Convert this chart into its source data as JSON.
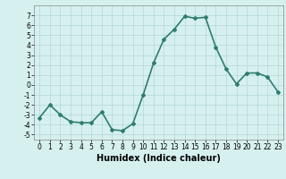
{
  "x": [
    0,
    1,
    2,
    3,
    4,
    5,
    6,
    7,
    8,
    9,
    10,
    11,
    12,
    13,
    14,
    15,
    16,
    17,
    18,
    19,
    20,
    21,
    22,
    23
  ],
  "y": [
    -3.3,
    -2.0,
    -3.0,
    -3.7,
    -3.8,
    -3.8,
    -2.7,
    -4.5,
    -4.6,
    -3.9,
    -1.0,
    2.2,
    4.6,
    5.6,
    6.9,
    6.7,
    6.8,
    3.8,
    1.6,
    0.1,
    1.2,
    1.2,
    0.8,
    -0.7
  ],
  "line_color": "#2e7d6e",
  "marker": "D",
  "marker_size": 2.0,
  "bg_color": "#d6f0ef",
  "grid_color": "#b0d8d8",
  "xlabel": "Humidex (Indice chaleur)",
  "ylim": [
    -5.5,
    8.0
  ],
  "xlim": [
    -0.5,
    23.5
  ],
  "yticks": [
    -5,
    -4,
    -3,
    -2,
    -1,
    0,
    1,
    2,
    3,
    4,
    5,
    6,
    7
  ],
  "xticks": [
    0,
    1,
    2,
    3,
    4,
    5,
    6,
    7,
    8,
    9,
    10,
    11,
    12,
    13,
    14,
    15,
    16,
    17,
    18,
    19,
    20,
    21,
    22,
    23
  ],
  "tick_fontsize": 5.5,
  "xlabel_fontsize": 7.0,
  "line_width": 1.2
}
